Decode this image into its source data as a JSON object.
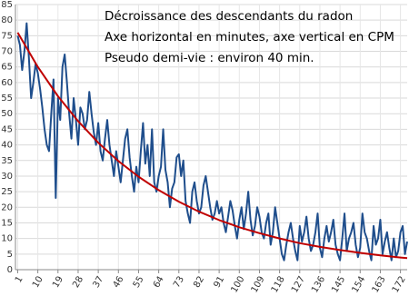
{
  "chart_data": {
    "type": "line",
    "annotations": [
      "Décroissance des descendants du radon",
      "Axe horizontal en minutes, axe vertical en CPM",
      "Pseudo demi-vie : environ 40 min."
    ],
    "x": [
      1,
      2,
      3,
      4,
      5,
      6,
      7,
      8,
      9,
      10,
      11,
      12,
      13,
      14,
      15,
      16,
      17,
      18,
      19,
      20,
      21,
      22,
      23,
      24,
      25,
      26,
      27,
      28,
      29,
      30,
      31,
      32,
      33,
      34,
      35,
      36,
      37,
      38,
      39,
      40,
      41,
      42,
      43,
      44,
      45,
      46,
      47,
      48,
      49,
      50,
      51,
      52,
      53,
      54,
      55,
      56,
      57,
      58,
      59,
      60,
      61,
      62,
      63,
      64,
      65,
      66,
      67,
      68,
      69,
      70,
      71,
      72,
      73,
      74,
      75,
      76,
      77,
      78,
      79,
      80,
      81,
      82,
      83,
      84,
      85,
      86,
      87,
      88,
      89,
      90,
      91,
      92,
      93,
      94,
      95,
      96,
      97,
      98,
      99,
      100,
      101,
      102,
      103,
      104,
      105,
      106,
      107,
      108,
      109,
      110,
      111,
      112,
      113,
      114,
      115,
      116,
      117,
      118,
      119,
      120,
      121,
      122,
      123,
      124,
      125,
      126,
      127,
      128,
      129,
      130,
      131,
      132,
      133,
      134,
      135,
      136,
      137,
      138,
      139,
      140,
      141,
      142,
      143,
      144,
      145,
      146,
      147,
      148,
      149,
      150,
      151,
      152,
      153,
      154,
      155,
      156,
      157,
      158,
      159,
      160,
      161,
      162,
      163,
      164,
      165,
      166,
      167,
      168,
      169,
      170,
      171,
      172,
      173,
      174,
      175
    ],
    "series": [
      {
        "color": "#1f4e8c",
        "values": [
          75,
          72,
          64,
          70,
          79,
          68,
          55,
          60,
          66,
          63,
          58,
          52,
          45,
          40,
          38,
          50,
          61,
          23,
          55,
          48,
          65,
          69,
          60,
          50,
          42,
          55,
          48,
          40,
          52,
          50,
          45,
          48,
          57,
          50,
          44,
          40,
          47,
          38,
          35,
          42,
          48,
          40,
          35,
          30,
          38,
          33,
          28,
          35,
          42,
          45,
          36,
          30,
          25,
          33,
          28,
          38,
          47,
          34,
          40,
          30,
          45,
          28,
          25,
          30,
          33,
          45,
          32,
          28,
          20,
          26,
          28,
          36,
          37,
          30,
          35,
          22,
          18,
          15,
          25,
          28,
          22,
          18,
          20,
          27,
          30,
          25,
          20,
          16,
          18,
          22,
          18,
          20,
          15,
          12,
          17,
          22,
          19,
          14,
          10,
          16,
          20,
          13,
          18,
          25,
          16,
          11,
          14,
          20,
          17,
          12,
          10,
          15,
          18,
          8,
          12,
          20,
          15,
          10,
          5,
          3,
          8,
          12,
          15,
          10,
          6,
          3,
          14,
          9,
          12,
          17,
          10,
          6,
          8,
          12,
          18,
          7,
          4,
          10,
          14,
          9,
          12,
          16,
          8,
          5,
          3,
          10,
          18,
          6,
          10,
          12,
          15,
          8,
          4,
          7,
          18,
          12,
          10,
          6,
          3,
          14,
          8,
          10,
          16,
          5,
          9,
          12,
          7,
          3,
          10,
          4,
          6,
          12,
          14,
          5,
          9
        ]
      },
      {
        "color": "#c00000",
        "x": [
          1,
          10,
          19,
          28,
          37,
          46,
          55,
          64,
          73,
          82,
          91,
          100,
          109,
          118,
          127,
          136,
          145,
          154,
          163,
          172,
          175
        ],
        "values": [
          76.0,
          65.0,
          55.6,
          47.6,
          40.7,
          34.8,
          29.8,
          25.5,
          21.8,
          18.6,
          15.9,
          13.6,
          11.7,
          10.0,
          8.5,
          7.3,
          6.3,
          5.4,
          4.6,
          3.9,
          3.7
        ]
      }
    ],
    "xlim": [
      0,
      175
    ],
    "xticks": [
      1,
      10,
      19,
      28,
      37,
      46,
      55,
      64,
      73,
      82,
      91,
      100,
      109,
      118,
      127,
      136,
      145,
      154,
      163,
      172
    ],
    "ylim": [
      0,
      85
    ],
    "yticks": [
      0,
      5,
      10,
      15,
      20,
      25,
      30,
      35,
      40,
      45,
      50,
      55,
      60,
      65,
      70,
      75,
      80,
      85
    ],
    "grid": true
  }
}
